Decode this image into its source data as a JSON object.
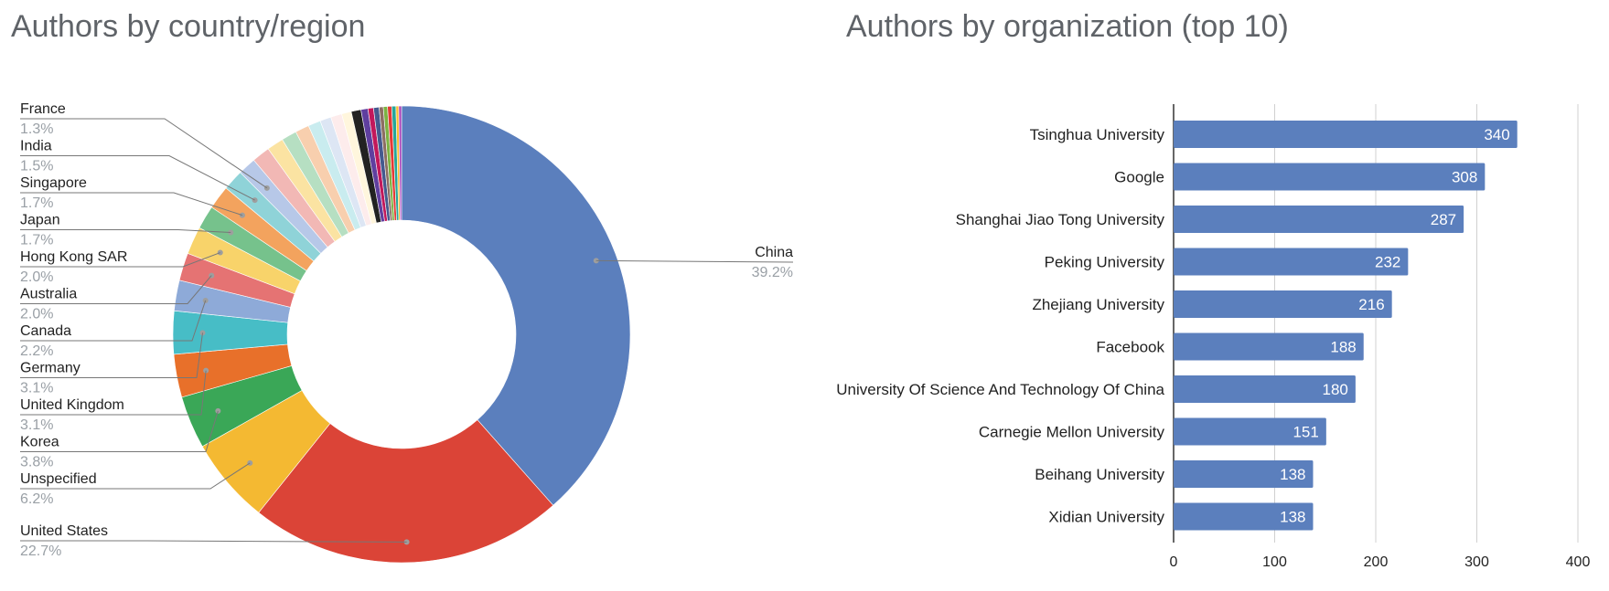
{
  "chart_data": [
    {
      "type": "pie",
      "title": "Authors by country/region",
      "donut": true,
      "slices": [
        {
          "label": "China",
          "value": 39.2,
          "pct_label": "39.2%",
          "color": "#5b7fbd"
        },
        {
          "label": "United States",
          "value": 22.7,
          "pct_label": "22.7%",
          "color": "#db4437"
        },
        {
          "label": "Unspecified",
          "value": 6.2,
          "pct_label": "6.2%",
          "color": "#f4b932"
        },
        {
          "label": "Korea",
          "value": 3.8,
          "pct_label": "3.8%",
          "color": "#3aa757"
        },
        {
          "label": "United Kingdom",
          "value": 3.1,
          "pct_label": "3.1%",
          "color": "#e8702a"
        },
        {
          "label": "Germany",
          "value": 3.1,
          "pct_label": "3.1%",
          "color": "#47bdc6"
        },
        {
          "label": "Canada",
          "value": 2.2,
          "pct_label": "2.2%",
          "color": "#8eaad8"
        },
        {
          "label": "Australia",
          "value": 2.0,
          "pct_label": "2.0%",
          "color": "#e57373"
        },
        {
          "label": "Hong Kong SAR",
          "value": 2.0,
          "pct_label": "2.0%",
          "color": "#f8d36a"
        },
        {
          "label": "Japan",
          "value": 1.7,
          "pct_label": "1.7%",
          "color": "#76c28c"
        },
        {
          "label": "Singapore",
          "value": 1.7,
          "pct_label": "1.7%",
          "color": "#f3a35e"
        },
        {
          "label": "India",
          "value": 1.5,
          "pct_label": "1.5%",
          "color": "#8fd3d8"
        },
        {
          "label": "France",
          "value": 1.3,
          "pct_label": "1.3%",
          "color": "#b7c8e8"
        },
        {
          "label": "",
          "value": 1.3,
          "color": "#f2b8b5"
        },
        {
          "label": "",
          "value": 1.2,
          "color": "#fbe3a2"
        },
        {
          "label": "",
          "value": 1.1,
          "color": "#b6dfc2"
        },
        {
          "label": "",
          "value": 1.0,
          "color": "#f8cfae"
        },
        {
          "label": "",
          "value": 0.9,
          "color": "#c9ecef"
        },
        {
          "label": "",
          "value": 0.8,
          "color": "#dde6f4"
        },
        {
          "label": "",
          "value": 0.8,
          "color": "#fdecec"
        },
        {
          "label": "",
          "value": 0.7,
          "color": "#fff6dd"
        },
        {
          "label": "",
          "value": 0.7,
          "color": "#222222"
        },
        {
          "label": "",
          "value": 0.5,
          "color": "#5f3f9f"
        },
        {
          "label": "",
          "value": 0.4,
          "color": "#c2185b"
        },
        {
          "label": "",
          "value": 0.4,
          "color": "#455a8f"
        },
        {
          "label": "",
          "value": 0.3,
          "color": "#8d6e63"
        },
        {
          "label": "",
          "value": 0.3,
          "color": "#7cb342"
        },
        {
          "label": "",
          "value": 0.3,
          "color": "#e53935"
        },
        {
          "label": "",
          "value": 0.3,
          "color": "#26a69a"
        },
        {
          "label": "",
          "value": 0.2,
          "color": "#fbc02d"
        },
        {
          "label": "",
          "value": 0.2,
          "color": "#ab47bc"
        }
      ]
    },
    {
      "type": "bar",
      "orientation": "horizontal",
      "title": "Authors by organization (top 10)",
      "categories": [
        "Tsinghua University",
        "Google",
        "Shanghai Jiao Tong University",
        "Peking University",
        "Zhejiang University",
        "Facebook",
        "University Of Science And Technology Of China",
        "Carnegie Mellon University",
        "Beihang University",
        "Xidian University"
      ],
      "values": [
        340,
        308,
        287,
        232,
        216,
        188,
        180,
        151,
        138,
        138
      ],
      "xlim": [
        0,
        400
      ],
      "xticks": [
        0,
        100,
        200,
        300,
        400
      ],
      "grid": true,
      "bar_color": "#5b7fbd"
    }
  ]
}
